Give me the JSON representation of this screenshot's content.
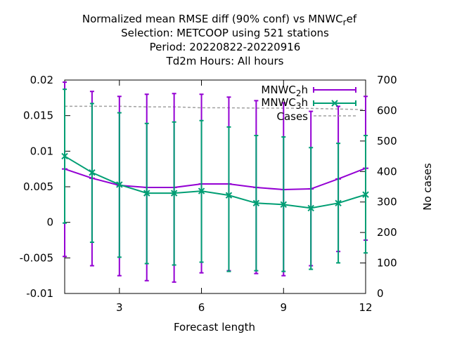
{
  "chart_data": {
    "type": "line",
    "title_lines": [
      "Normalized mean RMSE diff (90% conf) vs MNWC_ref",
      "Selection: METCOOP using   521 stations",
      "Period: 20220822-20220916",
      "Td2m   Hours:  All hours"
    ],
    "xlabel": "Forecast length",
    "ylabel_right": "No cases",
    "xlim": [
      1,
      12
    ],
    "ylim": [
      -0.01,
      0.02
    ],
    "y2lim": [
      0,
      700
    ],
    "x_ticks": [
      3,
      6,
      9,
      12
    ],
    "y_ticks": [
      -0.01,
      -0.005,
      0,
      0.005,
      0.01,
      0.015,
      0.02
    ],
    "y_tick_labels": [
      "-0.01",
      "-0.005",
      "0",
      "0.005",
      "0.01",
      "0.015",
      "0.02"
    ],
    "y2_ticks": [
      0,
      100,
      200,
      300,
      400,
      500,
      600,
      700
    ],
    "y2_tick_labels": [
      "0",
      "100",
      "200",
      "300",
      "400",
      "500",
      "600",
      "700"
    ],
    "x_tick_labels": [
      "3",
      "6",
      "9",
      "12"
    ],
    "grid": false,
    "legend_position": "top-right",
    "series": [
      {
        "name": "MNWC_2h",
        "legend_main": "MNWC",
        "legend_sub": "2",
        "legend_suffix": "h",
        "color": "#9400d3",
        "marker": "plus",
        "x": [
          1,
          2,
          3,
          4,
          5,
          6,
          7,
          8,
          9,
          10,
          11,
          12
        ],
        "values": [
          0.0075,
          0.0062,
          0.0052,
          0.0049,
          0.0049,
          0.0054,
          0.0054,
          0.0049,
          0.0046,
          0.0047,
          0.0061,
          0.0076
        ],
        "lower": [
          -0.0048,
          -0.0061,
          -0.0075,
          -0.0082,
          -0.0084,
          -0.0071,
          -0.0068,
          -0.0072,
          -0.0075,
          -0.0061,
          -0.0041,
          -0.0025
        ],
        "upper": [
          0.0197,
          0.0184,
          0.0177,
          0.018,
          0.0181,
          0.018,
          0.0176,
          0.0171,
          0.0168,
          0.0156,
          0.0163,
          0.0177
        ]
      },
      {
        "name": "MNWC_3h",
        "legend_main": "MNWC",
        "legend_sub": "3",
        "legend_suffix": "h",
        "color": "#009e73",
        "marker": "cross",
        "x": [
          1,
          2,
          3,
          4,
          5,
          6,
          7,
          8,
          9,
          10,
          11,
          12
        ],
        "values": [
          0.0093,
          0.007,
          0.0053,
          0.0041,
          0.0041,
          0.0044,
          0.0038,
          0.0027,
          0.0025,
          0.002,
          0.0027,
          0.0039
        ],
        "lower": [
          -0.0001,
          -0.0028,
          -0.0049,
          -0.0058,
          -0.006,
          -0.0056,
          -0.0069,
          -0.0068,
          -0.0069,
          -0.0066,
          -0.0057,
          -0.0043
        ],
        "upper": [
          0.0187,
          0.0167,
          0.0154,
          0.0139,
          0.0141,
          0.0143,
          0.0134,
          0.0122,
          0.012,
          0.0105,
          0.0111,
          0.0122
        ]
      }
    ],
    "cases_series": {
      "name": "Cases",
      "color": "#a0a0a0",
      "axis": "right",
      "x": [
        1,
        2,
        3,
        4,
        5,
        6,
        7,
        8,
        9,
        10,
        11,
        12
      ],
      "values": [
        614,
        614,
        614,
        612,
        612,
        609,
        609,
        608,
        608,
        607,
        605,
        603
      ]
    }
  }
}
